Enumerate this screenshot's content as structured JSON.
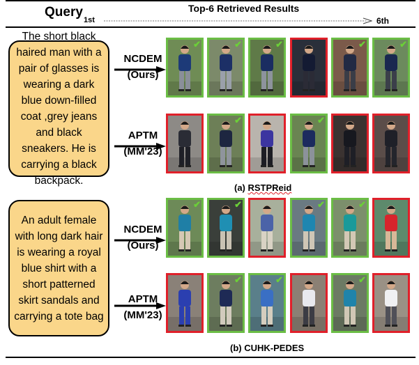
{
  "header": {
    "query_label": "Query",
    "first_label": "1st",
    "title": "Top-6 Retrieved Results",
    "last_label": "6th"
  },
  "panels": [
    {
      "query_text": "The short black haired man with a pair of glasses is wearing a dark blue down-filled coat ,grey jeans and black sneakers. He is carrying a black backpack.",
      "caption_prefix": "(a) ",
      "caption_name": "RSTPReid",
      "rows": [
        {
          "method_name": "NCDEM",
          "method_tag": "(Ours)",
          "results": [
            {
              "correct": true,
              "shirt": "#1d3a78",
              "legs": "#8a8f99",
              "bg": "#6f8c55"
            },
            {
              "correct": true,
              "shirt": "#1c2f66",
              "legs": "#9aa0aa",
              "bg": "#7c8a6a"
            },
            {
              "correct": true,
              "shirt": "#1a2d61",
              "legs": "#8d939c",
              "bg": "#5f7a48"
            },
            {
              "correct": false,
              "shirt": "#141b33",
              "legs": "#2b2b36",
              "bg": "#2a2f3a"
            },
            {
              "correct": true,
              "shirt": "#222a44",
              "legs": "#3a3d47",
              "bg": "#7b5a4a"
            },
            {
              "correct": true,
              "shirt": "#1a2850",
              "legs": "#3b3f4a",
              "bg": "#6c8a5d"
            }
          ]
        },
        {
          "method_name": "APTM",
          "method_tag": "(MM'23)",
          "results": [
            {
              "correct": false,
              "shirt": "#2a2c35",
              "legs": "#1f2027",
              "bg": "#8d8a86"
            },
            {
              "correct": true,
              "shirt": "#1d2640",
              "legs": "#8f949c",
              "bg": "#6d7f57"
            },
            {
              "correct": false,
              "shirt": "#3c35a0",
              "legs": "#1d1d24",
              "bg": "#b9b4ad"
            },
            {
              "correct": true,
              "shirt": "#1c2b5e",
              "legs": "#8c929a",
              "bg": "#6a8452"
            },
            {
              "correct": false,
              "shirt": "#17181f",
              "legs": "#1e1f26",
              "bg": "#3b3331"
            },
            {
              "correct": false,
              "shirt": "#1f2028",
              "legs": "#24252c",
              "bg": "#5b4d49"
            }
          ]
        }
      ]
    },
    {
      "query_text": "An adult female with long dark hair is wearing a royal blue shirt with a short patterned skirt sandals and carrying a tote bag",
      "caption_prefix": "(b) ",
      "caption_name": "CUHK-PEDES",
      "rows": [
        {
          "method_name": "NCDEM",
          "method_tag": "(Ours)",
          "results": [
            {
              "correct": true,
              "shirt": "#1f7fa6",
              "legs": "#d6c8b4",
              "bg": "#6d8a58"
            },
            {
              "correct": true,
              "shirt": "#1f8fb3",
              "legs": "#c9c2b3",
              "bg": "#3a3f3a"
            },
            {
              "correct": false,
              "shirt": "#4b63a8",
              "legs": "#d9d2c4",
              "bg": "#a8b09c"
            },
            {
              "correct": true,
              "shirt": "#1e86b0",
              "legs": "#cfc6b6",
              "bg": "#6a7a82"
            },
            {
              "correct": true,
              "shirt": "#1a9a9a",
              "legs": "#d3c8b5",
              "bg": "#7c8f6c"
            },
            {
              "correct": false,
              "shirt": "#d8242c",
              "legs": "#d7b898",
              "bg": "#5d8a6c"
            }
          ]
        },
        {
          "method_name": "APTM",
          "method_tag": "(MM'23)",
          "results": [
            {
              "correct": false,
              "shirt": "#2b3fb0",
              "legs": "#2b3fb0",
              "bg": "#8a8178"
            },
            {
              "correct": true,
              "shirt": "#1e2a55",
              "legs": "#d2cbbd",
              "bg": "#6d7d5f"
            },
            {
              "correct": true,
              "shirt": "#3a6fc4",
              "legs": "#d5cdbe",
              "bg": "#5a7f8a"
            },
            {
              "correct": false,
              "shirt": "#e9e9ee",
              "legs": "#3c3c44",
              "bg": "#8b8074"
            },
            {
              "correct": true,
              "shirt": "#1f84aa",
              "legs": "#d0c7b5",
              "bg": "#6c7a64"
            },
            {
              "correct": false,
              "shirt": "#f0f0f2",
              "legs": "#505058",
              "bg": "#9a9185"
            }
          ]
        }
      ]
    }
  ],
  "colors": {
    "correct_border": "#6bbd45",
    "wrong_border": "#e0202a",
    "query_fill": "#fad68a",
    "checkmark": "#6bd037"
  }
}
